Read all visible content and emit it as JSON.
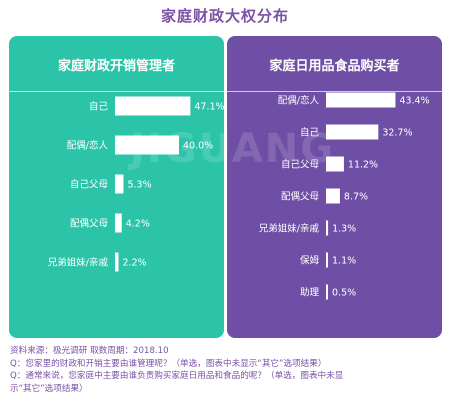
{
  "title": "家庭财政大权分布",
  "watermark": "JIGUANG",
  "colors": {
    "left_panel": "#2bc4a9",
    "right_panel": "#6f4ea5",
    "bar": "#ffffff",
    "title": "#7b52a6"
  },
  "chart_data": [
    {
      "type": "bar",
      "orientation": "horizontal",
      "title": "家庭财政开销管理者",
      "categories": [
        "自己",
        "配偶/恋人",
        "自己父母",
        "配偶父母",
        "兄弟姐妹/亲戚"
      ],
      "values": [
        47.1,
        40.0,
        5.3,
        4.2,
        2.2
      ],
      "value_labels": [
        "47.1%",
        "40.0%",
        "5.3%",
        "4.2%",
        "2.2%"
      ],
      "unit": "%",
      "xlim": [
        0,
        50
      ]
    },
    {
      "type": "bar",
      "orientation": "horizontal",
      "title": "家庭日用品食品购买者",
      "categories": [
        "配偶/恋人",
        "自己",
        "自己父母",
        "配偶父母",
        "兄弟姐妹/亲戚",
        "保姆",
        "助理"
      ],
      "values": [
        43.4,
        32.7,
        11.2,
        8.7,
        1.3,
        1.1,
        0.5
      ],
      "value_labels": [
        "43.4%",
        "32.7%",
        "11.2%",
        "8.7%",
        "1.3%",
        "1.1%",
        "0.5%"
      ],
      "unit": "%",
      "xlim": [
        0,
        50
      ]
    }
  ],
  "notes": {
    "source": "资料来源：极光调研          取数周期：2018.10",
    "q1": "Q：您家里的财政和开销主要由谁管理呢？（单选，图表中未显示“其它”选项结果）",
    "q2a": "Q：通常来说，您家庭中主要由谁负责购买家庭日用品和食品的呢？（单选，图表中未显",
    "q2b": "示“其它”选项结果）"
  }
}
